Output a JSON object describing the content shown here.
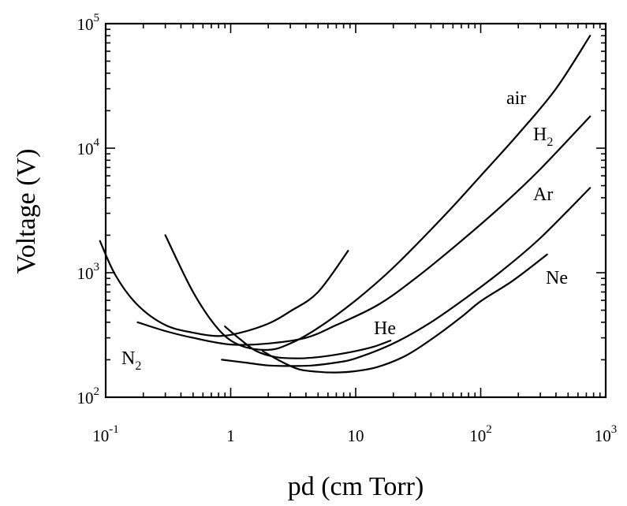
{
  "chart_data": {
    "type": "line",
    "title": "",
    "xlabel": "pd (cm Torr)",
    "ylabel": "Voltage (V)",
    "xscale": "log",
    "yscale": "log",
    "xlim": [
      0.1,
      1000
    ],
    "ylim": [
      100,
      100000
    ],
    "grid": false,
    "x_tick_labels": [
      {
        "value": 0.1,
        "base": "10",
        "exp": "-1"
      },
      {
        "value": 1,
        "base": "1",
        "exp": ""
      },
      {
        "value": 10,
        "base": "10",
        "exp": ""
      },
      {
        "value": 100,
        "base": "10",
        "exp": "2"
      },
      {
        "value": 1000,
        "base": "10",
        "exp": "3"
      }
    ],
    "y_tick_labels": [
      {
        "value": 100,
        "base": "10",
        "exp": "2"
      },
      {
        "value": 1000,
        "base": "10",
        "exp": "3"
      },
      {
        "value": 10000,
        "base": "10",
        "exp": "4"
      },
      {
        "value": 100000,
        "base": "10",
        "exp": "5"
      }
    ],
    "series": [
      {
        "name": "air",
        "label_base": "air",
        "label_sub": "",
        "x": [
          0.3,
          0.5,
          0.8,
          1.2,
          2,
          3,
          5,
          10,
          20,
          50,
          100,
          200,
          400,
          750
        ],
        "y": [
          2000,
          700,
          350,
          260,
          240,
          270,
          360,
          600,
          1100,
          2800,
          6000,
          13000,
          30000,
          80000
        ]
      },
      {
        "name": "H2",
        "label_base": "H",
        "label_sub": "2",
        "x": [
          0.18,
          0.3,
          0.5,
          1,
          2,
          4,
          7,
          15,
          30,
          70,
          150,
          300,
          750
        ],
        "y": [
          400,
          340,
          300,
          265,
          270,
          300,
          380,
          550,
          900,
          1800,
          3500,
          6800,
          18000
        ]
      },
      {
        "name": "N2",
        "label_base": "N",
        "label_sub": "2",
        "x": [
          0.09,
          0.12,
          0.18,
          0.3,
          0.5,
          0.8,
          1.2,
          2,
          3,
          5,
          8.7
        ],
        "y": [
          1800,
          950,
          550,
          380,
          330,
          310,
          330,
          390,
          490,
          700,
          1500
        ]
      },
      {
        "name": "He",
        "label_base": "He",
        "label_sub": "",
        "x": [
          0.9,
          1.2,
          1.6,
          2.3,
          3.5,
          5,
          7,
          10,
          14,
          19
        ],
        "y": [
          370,
          290,
          235,
          210,
          205,
          210,
          220,
          235,
          255,
          285
        ]
      },
      {
        "name": "Ar",
        "label_base": "Ar",
        "label_sub": "",
        "x": [
          0.85,
          1.3,
          2,
          3,
          4.5,
          7,
          10,
          20,
          40,
          80,
          150,
          300,
          750
        ],
        "y": [
          200,
          190,
          180,
          178,
          180,
          190,
          205,
          270,
          400,
          650,
          1050,
          1900,
          4800
        ]
      },
      {
        "name": "Ne",
        "label_base": "Ne",
        "label_sub": "",
        "x": [
          1.8,
          2.5,
          3.5,
          5,
          7,
          10,
          15,
          25,
          40,
          70,
          100,
          180,
          340
        ],
        "y": [
          235,
          195,
          168,
          160,
          158,
          162,
          175,
          215,
          290,
          440,
          590,
          860,
          1400
        ]
      }
    ]
  }
}
